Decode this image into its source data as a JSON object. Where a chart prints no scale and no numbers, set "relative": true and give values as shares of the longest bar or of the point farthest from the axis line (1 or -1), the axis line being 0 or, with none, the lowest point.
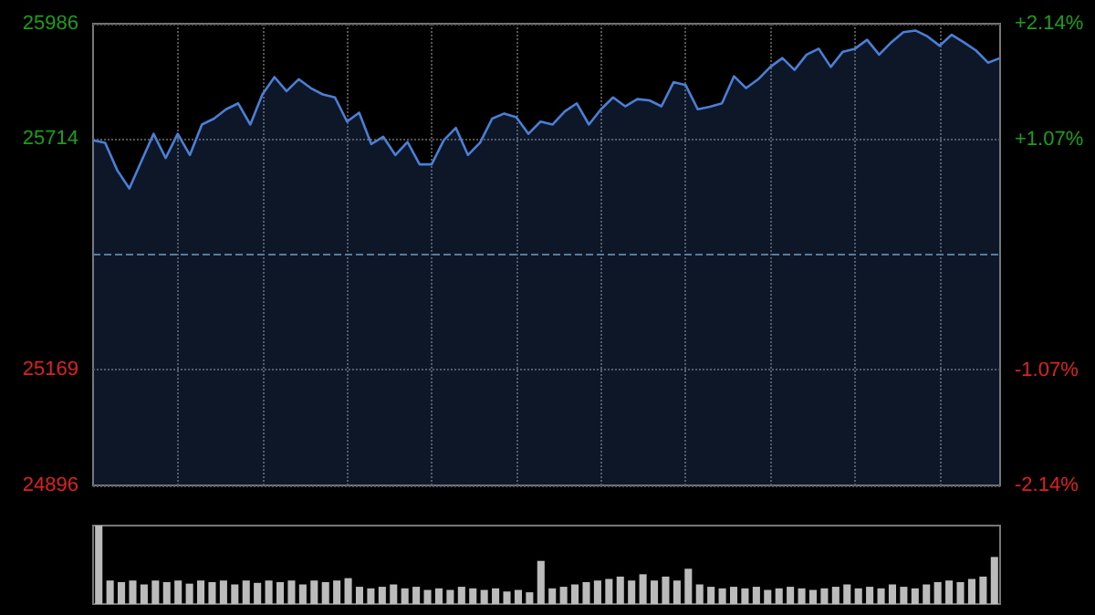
{
  "chart_data": [
    {
      "type": "area",
      "categories": [
        null,
        null,
        null,
        null,
        null,
        null,
        null,
        null,
        null,
        null,
        null,
        null,
        null,
        null,
        null,
        null,
        null,
        null,
        null,
        null,
        null,
        null,
        null,
        null,
        null,
        null,
        null,
        null,
        null,
        null,
        null,
        null,
        null,
        null,
        null,
        null,
        null,
        null,
        null,
        null,
        null,
        null,
        null,
        null,
        null,
        null,
        null,
        null,
        null,
        null,
        null,
        null,
        null,
        null,
        null,
        null,
        null,
        null,
        null,
        null,
        null,
        null,
        null,
        null,
        null,
        null,
        null,
        null,
        null,
        null,
        null,
        null,
        null,
        null,
        null,
        null
      ],
      "series": [
        {
          "color": "#4a7fd6",
          "values": [
            25711,
            25705,
            25640,
            25597,
            25662,
            25726,
            25669,
            25726,
            25676,
            25748,
            25762,
            25784,
            25798,
            25748,
            25819,
            25860,
            25827,
            25855,
            25834,
            25819,
            25812,
            25755,
            25776,
            25702,
            25719,
            25676,
            25707,
            25654,
            25654,
            25711,
            25740,
            25676,
            25705,
            25762,
            25774,
            25765,
            25726,
            25755,
            25748,
            25779,
            25798,
            25748,
            25784,
            25812,
            25791,
            25808,
            25805,
            25791,
            25848,
            25841,
            25784,
            25790,
            25798,
            25862,
            25834,
            25855,
            25884,
            25905,
            25877,
            25913,
            25927,
            25884,
            25920,
            25927,
            25948,
            25913,
            25942,
            25966,
            25970,
            25956,
            25934,
            25960,
            25942,
            25923,
            25894,
            25905
          ]
        }
      ],
      "ylim": [
        24896,
        25986
      ],
      "yticks": [
        24896,
        25169,
        25714,
        25986
      ],
      "y2lim": [
        -2.14,
        2.14
      ],
      "y2ticks": [
        {
          "value": -2.14,
          "label": "-2.14%"
        },
        {
          "value": -1.07,
          "label": "-1.07%"
        },
        {
          "value": 1.07,
          "label": "+1.07%"
        },
        {
          "value": 2.14,
          "label": "+2.14%"
        }
      ],
      "ref_lines": [
        {
          "axis": "y",
          "value": 25441,
          "color": "#5a7a99",
          "line_style": "dashed"
        }
      ],
      "grid": true,
      "tick_labels": "y",
      "line_style": "solid"
    },
    {
      "type": "bar",
      "relative": true,
      "color": "#bbbbbb",
      "categories": [
        null,
        null,
        null,
        null,
        null,
        null,
        null,
        null,
        null,
        null,
        null,
        null,
        null,
        null,
        null,
        null,
        null,
        null,
        null,
        null,
        null,
        null,
        null,
        null,
        null,
        null,
        null,
        null,
        null,
        null,
        null,
        null,
        null,
        null,
        null,
        null,
        null,
        null,
        null,
        null,
        null,
        null,
        null,
        null,
        null,
        null,
        null,
        null,
        null,
        null,
        null,
        null,
        null,
        null,
        null,
        null,
        null,
        null,
        null,
        null,
        null,
        null,
        null,
        null,
        null,
        null,
        null,
        null,
        null,
        null,
        null,
        null,
        null,
        null,
        null,
        null,
        null,
        null,
        null,
        null
      ],
      "values": [
        1,
        0.3,
        0.28,
        0.3,
        0.25,
        0.3,
        0.28,
        0.3,
        0.26,
        0.3,
        0.28,
        0.3,
        0.25,
        0.3,
        0.27,
        0.3,
        0.28,
        0.3,
        0.25,
        0.3,
        0.28,
        0.3,
        0.33,
        0.22,
        0.2,
        0.22,
        0.25,
        0.2,
        0.22,
        0.18,
        0.2,
        0.18,
        0.22,
        0.2,
        0.18,
        0.2,
        0.16,
        0.18,
        0.15,
        0.55,
        0.2,
        0.22,
        0.25,
        0.28,
        0.3,
        0.32,
        0.35,
        0.3,
        0.38,
        0.3,
        0.35,
        0.3,
        0.45,
        0.25,
        0.22,
        0.2,
        0.22,
        0.2,
        0.22,
        0.18,
        0.2,
        0.22,
        0.2,
        0.18,
        0.2,
        0.22,
        0.25,
        0.2,
        0.22,
        0.2,
        0.25,
        0.22,
        0.2,
        0.25,
        0.28,
        0.3,
        0.28,
        0.32,
        0.35,
        0.6
      ],
      "grid": false,
      "tick_labels": false
    }
  ]
}
